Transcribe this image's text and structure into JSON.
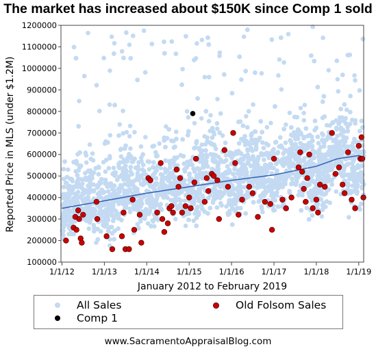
{
  "chart_data": {
    "type": "scatter",
    "title": "The market has increased about $150K since Comp 1 sold",
    "xlabel": "January 2012 to February 2019",
    "ylabel": "Reported Price in MLS (under $1.2M)",
    "x_range": [
      "2012-01-01",
      "2019-02-15"
    ],
    "ylim": [
      100000,
      1200000
    ],
    "x_ticks": [
      "1/1/12",
      "1/1/13",
      "1/1/14",
      "1/1/15",
      "1/1/16",
      "1/1/17",
      "1/1/18",
      "1/1/19"
    ],
    "y_ticks": [
      100000,
      200000,
      300000,
      400000,
      500000,
      600000,
      700000,
      800000,
      900000,
      1000000,
      1100000,
      1200000
    ],
    "y_tick_labels": [
      "100000",
      "200000",
      "300000",
      "400000",
      "500000",
      "600000",
      "700000",
      "800000",
      "900000",
      "1000000",
      "1100000",
      "1200000"
    ],
    "grid": false,
    "legend_position": "bottom",
    "series": [
      {
        "name": "All Sales",
        "color": "#c3daf2",
        "kind": "scatter",
        "note_values": "dense cloud of several thousand sales; trend rises roughly 350000 to 590000",
        "band": [
          {
            "x": "2012-01-01",
            "low": 150000,
            "mid": 350000,
            "high": 700000
          },
          {
            "x": "2013-01-01",
            "low": 180000,
            "mid": 380000,
            "high": 780000
          },
          {
            "x": "2014-01-01",
            "low": 220000,
            "mid": 420000,
            "high": 820000
          },
          {
            "x": "2015-01-01",
            "low": 240000,
            "mid": 450000,
            "high": 850000
          },
          {
            "x": "2016-01-01",
            "low": 250000,
            "mid": 480000,
            "high": 880000
          },
          {
            "x": "2017-01-01",
            "low": 270000,
            "mid": 510000,
            "high": 900000
          },
          {
            "x": "2018-01-01",
            "low": 280000,
            "mid": 560000,
            "high": 920000
          },
          {
            "x": "2019-02-15",
            "low": 300000,
            "mid": 580000,
            "high": 950000
          }
        ]
      },
      {
        "name": "Old Folsom Sales",
        "color": "#cc0000",
        "kind": "scatter",
        "points": [
          [
            "2012-02-05",
            200000
          ],
          [
            "2012-04-10",
            260000
          ],
          [
            "2012-04-25",
            310000
          ],
          [
            "2012-05-05",
            250000
          ],
          [
            "2012-05-20",
            340000
          ],
          [
            "2012-05-28",
            300000
          ],
          [
            "2012-06-10",
            210000
          ],
          [
            "2012-06-20",
            190000
          ],
          [
            "2012-07-01",
            320000
          ],
          [
            "2012-10-25",
            380000
          ],
          [
            "2012-11-01",
            300000
          ],
          [
            "2013-01-20",
            220000
          ],
          [
            "2013-03-10",
            160000
          ],
          [
            "2013-06-01",
            220000
          ],
          [
            "2013-06-15",
            330000
          ],
          [
            "2013-07-01",
            160000
          ],
          [
            "2013-08-01",
            160000
          ],
          [
            "2013-09-01",
            390000
          ],
          [
            "2013-09-15",
            250000
          ],
          [
            "2013-11-01",
            320000
          ],
          [
            "2013-11-15",
            190000
          ],
          [
            "2014-01-15",
            490000
          ],
          [
            "2014-02-01",
            480000
          ],
          [
            "2014-04-01",
            330000
          ],
          [
            "2014-05-01",
            560000
          ],
          [
            "2014-05-15",
            300000
          ],
          [
            "2014-06-01",
            240000
          ],
          [
            "2014-07-01",
            280000
          ],
          [
            "2014-07-15",
            350000
          ],
          [
            "2014-08-01",
            360000
          ],
          [
            "2014-08-15",
            330000
          ],
          [
            "2014-09-15",
            530000
          ],
          [
            "2014-10-01",
            450000
          ],
          [
            "2014-10-15",
            490000
          ],
          [
            "2014-11-01",
            330000
          ],
          [
            "2014-12-01",
            360000
          ],
          [
            "2015-01-01",
            400000
          ],
          [
            "2015-01-15",
            350000
          ],
          [
            "2015-02-15",
            470000
          ],
          [
            "2015-03-01",
            580000
          ],
          [
            "2015-05-15",
            380000
          ],
          [
            "2015-06-01",
            490000
          ],
          [
            "2015-06-15",
            430000
          ],
          [
            "2015-07-15",
            510000
          ],
          [
            "2015-08-01",
            500000
          ],
          [
            "2015-09-01",
            480000
          ],
          [
            "2015-09-15",
            300000
          ],
          [
            "2015-11-01",
            620000
          ],
          [
            "2015-12-01",
            450000
          ],
          [
            "2016-01-15",
            700000
          ],
          [
            "2016-02-01",
            560000
          ],
          [
            "2016-03-01",
            320000
          ],
          [
            "2016-04-01",
            390000
          ],
          [
            "2016-06-01",
            450000
          ],
          [
            "2016-07-01",
            420000
          ],
          [
            "2016-08-15",
            310000
          ],
          [
            "2016-10-15",
            380000
          ],
          [
            "2016-12-01",
            370000
          ],
          [
            "2016-12-15",
            250000
          ],
          [
            "2017-01-01",
            580000
          ],
          [
            "2017-03-15",
            390000
          ],
          [
            "2017-04-15",
            350000
          ],
          [
            "2017-06-01",
            400000
          ],
          [
            "2017-08-01",
            540000
          ],
          [
            "2017-08-15",
            610000
          ],
          [
            "2017-09-01",
            520000
          ],
          [
            "2017-09-15",
            440000
          ],
          [
            "2017-10-01",
            380000
          ],
          [
            "2017-10-15",
            490000
          ],
          [
            "2017-11-01",
            600000
          ],
          [
            "2017-12-01",
            350000
          ],
          [
            "2018-01-01",
            390000
          ],
          [
            "2018-01-15",
            330000
          ],
          [
            "2018-02-01",
            460000
          ],
          [
            "2018-03-15",
            450000
          ],
          [
            "2018-05-15",
            700000
          ],
          [
            "2018-06-15",
            510000
          ],
          [
            "2018-07-15",
            540000
          ],
          [
            "2018-08-15",
            460000
          ],
          [
            "2018-09-01",
            420000
          ],
          [
            "2018-10-01",
            610000
          ],
          [
            "2018-11-01",
            390000
          ],
          [
            "2018-12-01",
            350000
          ],
          [
            "2019-01-01",
            640000
          ],
          [
            "2019-01-15",
            580000
          ],
          [
            "2019-01-25",
            680000
          ],
          [
            "2019-02-01",
            580000
          ],
          [
            "2019-02-10",
            400000
          ]
        ]
      },
      {
        "name": "Comp 1",
        "color": "#000000",
        "kind": "scatter",
        "points": [
          [
            "2015-02-01",
            790000
          ]
        ]
      }
    ],
    "trendline": {
      "color": "#3a64b8",
      "points": [
        [
          "2012-01-01",
          350000
        ],
        [
          "2013-01-01",
          385000
        ],
        [
          "2014-01-01",
          420000
        ],
        [
          "2015-01-01",
          450000
        ],
        [
          "2016-01-01",
          480000
        ],
        [
          "2017-01-01",
          505000
        ],
        [
          "2018-01-01",
          545000
        ],
        [
          "2018-07-01",
          580000
        ],
        [
          "2019-01-01",
          595000
        ],
        [
          "2019-02-15",
          588000
        ]
      ]
    }
  },
  "legend": {
    "items": [
      {
        "name": "All Sales",
        "color": "#c3daf2"
      },
      {
        "name": "Old Folsom Sales",
        "color": "#cc0000"
      },
      {
        "name": "Comp 1",
        "color": "#000000"
      }
    ]
  },
  "footer": {
    "text": "www.SacramentoAppraisalBlog.com"
  }
}
